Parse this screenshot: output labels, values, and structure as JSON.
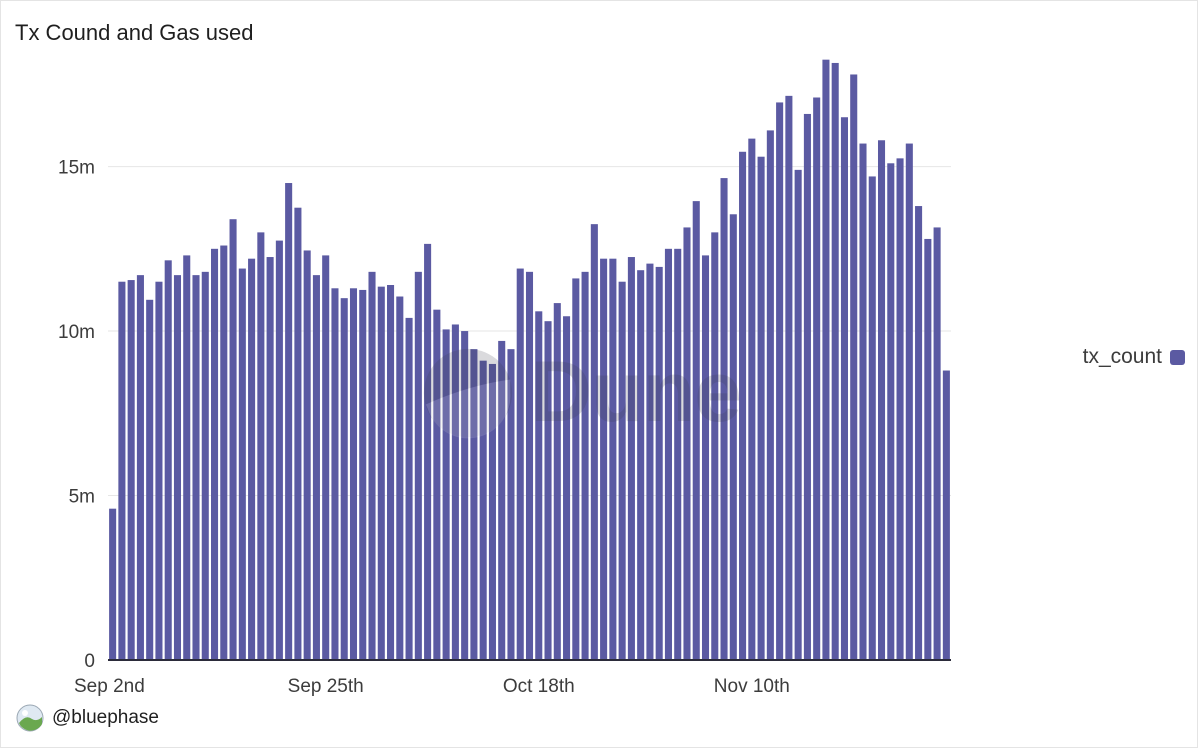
{
  "watermark": {
    "text": "Dune"
  },
  "legend": {
    "label": "tx_count",
    "color": "#5B5AA2"
  },
  "credit": {
    "handle": "@bluephase"
  },
  "chart_data": {
    "type": "bar",
    "title": "Tx Cound and Gas used",
    "xlabel": "",
    "ylabel": "",
    "ylim": [
      0,
      19000000
    ],
    "y_ticks": [
      {
        "value": 0,
        "label": "0"
      },
      {
        "value": 5000000,
        "label": "5m"
      },
      {
        "value": 10000000,
        "label": "10m"
      },
      {
        "value": 15000000,
        "label": "15m"
      }
    ],
    "x_ticks": [
      {
        "index": 0,
        "label": "Sep 2nd"
      },
      {
        "index": 23,
        "label": "Sep 25th"
      },
      {
        "index": 46,
        "label": "Oct 18th"
      },
      {
        "index": 69,
        "label": "Nov 10th"
      }
    ],
    "grid": true,
    "legend_position": "right",
    "bar_color": "#5B5AA2",
    "series": [
      {
        "name": "tx_count",
        "values": [
          4600000,
          11500000,
          11550000,
          11700000,
          10950000,
          11500000,
          12150000,
          11700000,
          12300000,
          11700000,
          11800000,
          12500000,
          12600000,
          13400000,
          11900000,
          12200000,
          13000000,
          12250000,
          12750000,
          14500000,
          13750000,
          12450000,
          11700000,
          12300000,
          11300000,
          11000000,
          11300000,
          11250000,
          11800000,
          11350000,
          11400000,
          11050000,
          10400000,
          11800000,
          12650000,
          10650000,
          10050000,
          10200000,
          10000000,
          9450000,
          9100000,
          9000000,
          9700000,
          9450000,
          11900000,
          11800000,
          10600000,
          10300000,
          10850000,
          10450000,
          11600000,
          11800000,
          13250000,
          12200000,
          12200000,
          11500000,
          12250000,
          11850000,
          12050000,
          11950000,
          12500000,
          12500000,
          13150000,
          13950000,
          12300000,
          13000000,
          14650000,
          13550000,
          15450000,
          15850000,
          15300000,
          16100000,
          16950000,
          17150000,
          14900000,
          16600000,
          17100000,
          18250000,
          18150000,
          16500000,
          17800000,
          15700000,
          14700000,
          15800000,
          15100000,
          15250000,
          15700000,
          13800000,
          12800000,
          13150000,
          8800000
        ]
      }
    ]
  }
}
